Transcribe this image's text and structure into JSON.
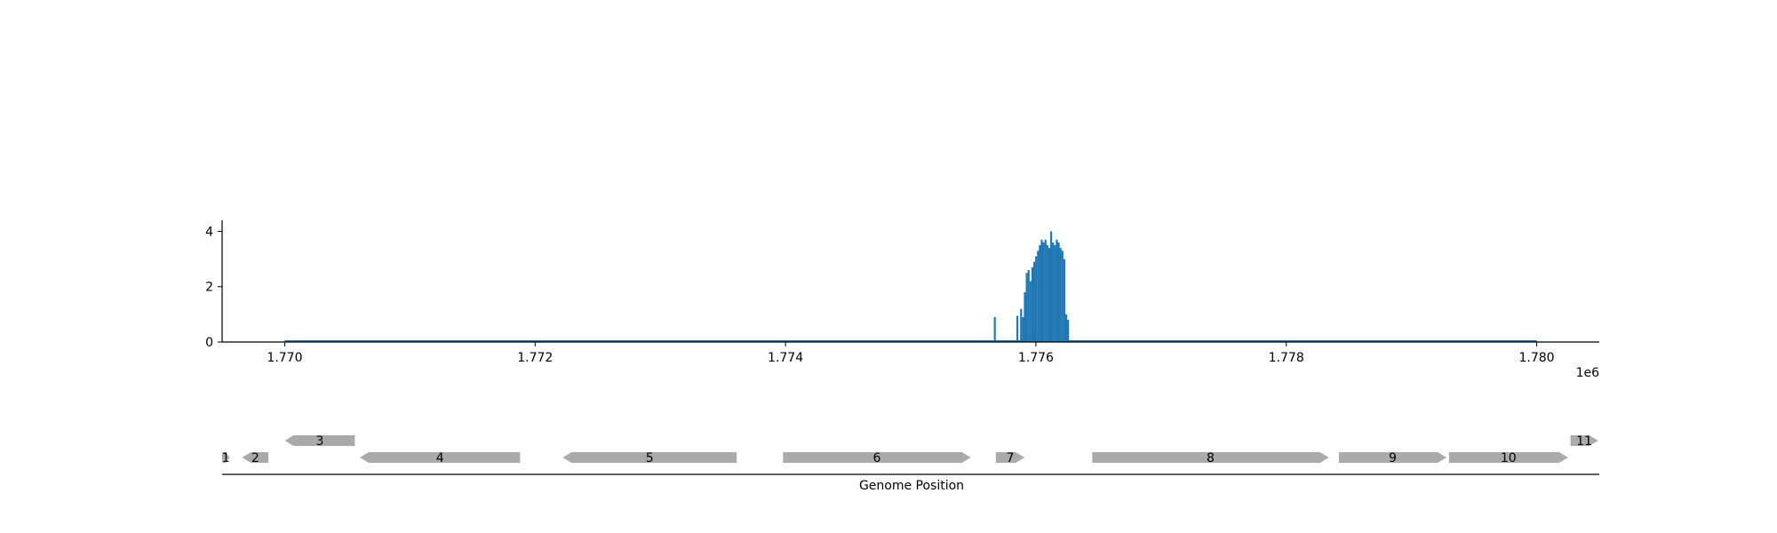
{
  "chart_data": [
    {
      "type": "bar",
      "title": "",
      "xlabel": "",
      "ylabel": "",
      "x_offset_label": "1e6",
      "xlim": [
        1769500,
        1780500
      ],
      "ylim": [
        0,
        4.4
      ],
      "x_ticks": [
        1770000,
        1772000,
        1774000,
        1776000,
        1778000,
        1780000
      ],
      "x_tick_labels": [
        "1.770",
        "1.772",
        "1.774",
        "1.776",
        "1.778",
        "1.780"
      ],
      "y_ticks": [
        0,
        2,
        4
      ],
      "y_tick_labels": [
        "0",
        "2",
        "4"
      ],
      "baseline": [
        1770000,
        1780000
      ],
      "grid": false,
      "color": "#1f77b4",
      "x": [
        1775670,
        1775850,
        1775880,
        1775895,
        1775910,
        1775925,
        1775940,
        1775955,
        1775970,
        1775985,
        1776000,
        1776015,
        1776030,
        1776045,
        1776060,
        1776075,
        1776090,
        1776105,
        1776120,
        1776135,
        1776150,
        1776165,
        1776180,
        1776195,
        1776210,
        1776225,
        1776240,
        1776255,
        1776270,
        1776285
      ],
      "values": [
        0.9,
        0.95,
        1.2,
        0.9,
        1.8,
        2.5,
        2.6,
        2.2,
        2.7,
        2.9,
        3.1,
        3.3,
        3.5,
        3.7,
        3.6,
        3.7,
        3.5,
        3.4,
        4.0,
        3.6,
        3.5,
        3.7,
        3.6,
        3.4,
        3.3,
        3.0,
        1.0,
        0.8,
        0.0,
        0.0
      ]
    },
    {
      "type": "gene-track",
      "xlabel": "Genome Position",
      "xlim": [
        1769500,
        1780500
      ],
      "genes": [
        {
          "label": "1",
          "start": 1769500,
          "end": 1769560,
          "strand": 1,
          "row": 0
        },
        {
          "label": "2",
          "start": 1769660,
          "end": 1769870,
          "strand": -1,
          "row": 0
        },
        {
          "label": "3",
          "start": 1770000,
          "end": 1770560,
          "strand": -1,
          "row": 1
        },
        {
          "label": "4",
          "start": 1770600,
          "end": 1771880,
          "strand": -1,
          "row": 0
        },
        {
          "label": "5",
          "start": 1772220,
          "end": 1773610,
          "strand": -1,
          "row": 0
        },
        {
          "label": "6",
          "start": 1773980,
          "end": 1775480,
          "strand": 1,
          "row": 0
        },
        {
          "label": "7",
          "start": 1775680,
          "end": 1775910,
          "strand": 1,
          "row": 0
        },
        {
          "label": "8",
          "start": 1776450,
          "end": 1778340,
          "strand": 1,
          "row": 0
        },
        {
          "label": "9",
          "start": 1778420,
          "end": 1779280,
          "strand": 1,
          "row": 0
        },
        {
          "label": "10",
          "start": 1779300,
          "end": 1780250,
          "strand": 1,
          "row": 0
        },
        {
          "label": "11",
          "start": 1780270,
          "end": 1780490,
          "strand": 1,
          "row": 1
        }
      ],
      "color": "#aaaaaa"
    }
  ]
}
